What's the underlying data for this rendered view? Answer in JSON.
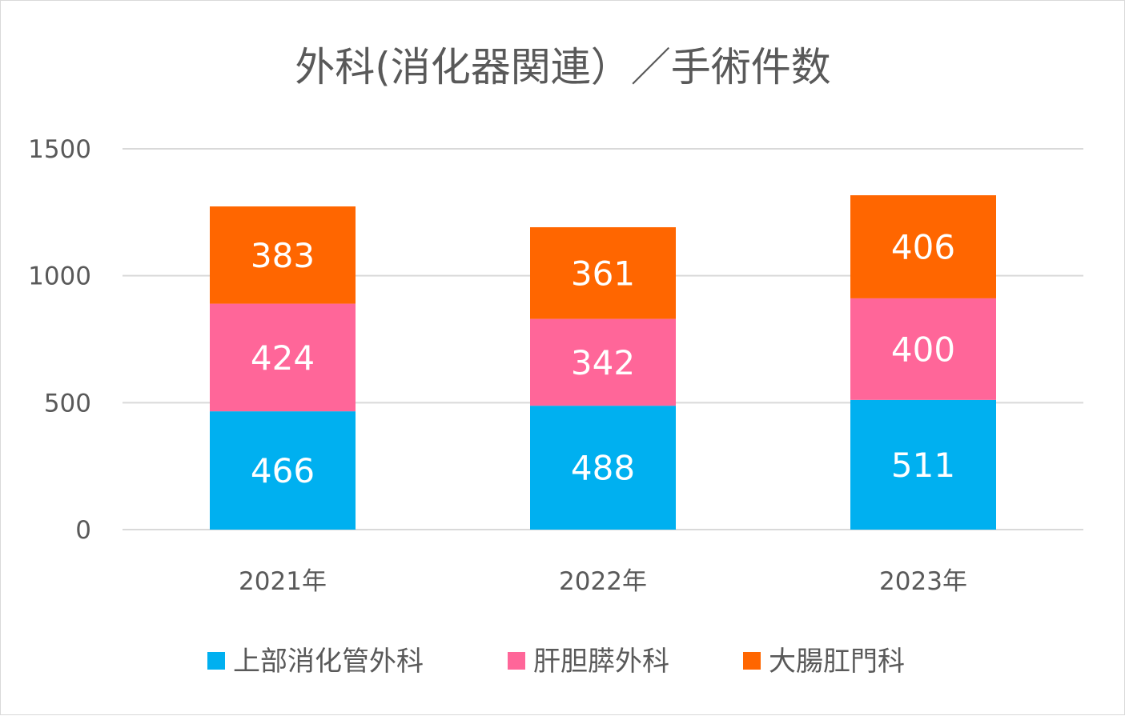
{
  "chart_data": {
    "type": "bar",
    "stacked": true,
    "title": "外科(消化器関連）／手術件数",
    "categories": [
      "2021年",
      "2022年",
      "2023年"
    ],
    "series": [
      {
        "name": "上部消化管外科",
        "color": "#00b0f0",
        "values": [
          466,
          488,
          511
        ]
      },
      {
        "name": "肝胆膵外科",
        "color": "#ff6699",
        "values": [
          424,
          342,
          400
        ]
      },
      {
        "name": "大腸肛門科",
        "color": "#ff6600",
        "values": [
          383,
          361,
          406
        ]
      }
    ],
    "yticks": [
      0,
      500,
      1000,
      1500
    ],
    "ylim": [
      0,
      1500
    ],
    "grid": true,
    "legend_position": "bottom"
  }
}
